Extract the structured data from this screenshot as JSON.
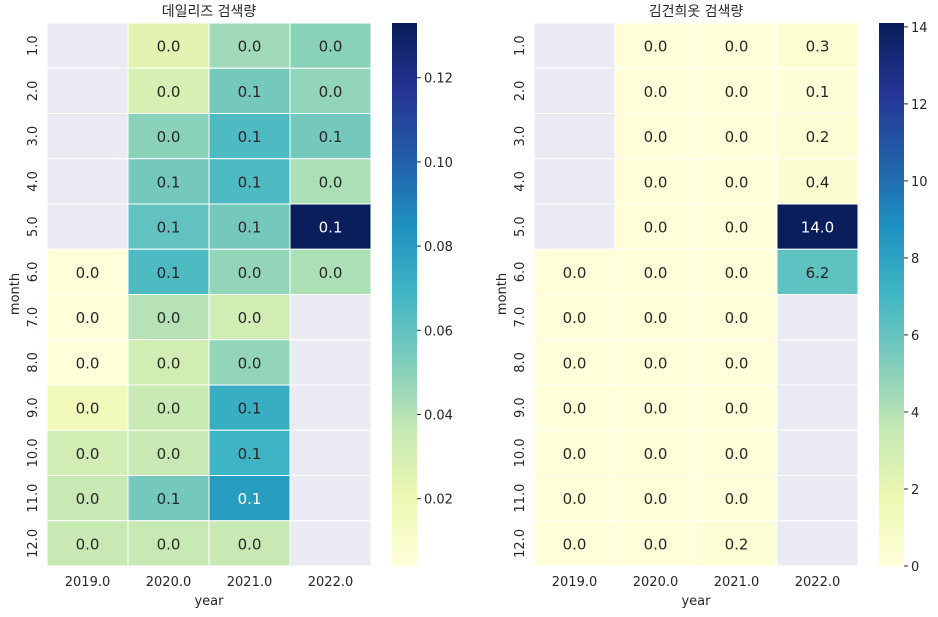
{
  "colorscale": {
    "name": "YlGnBu",
    "stops": [
      "#ffffd9",
      "#edf8b1",
      "#c7e9b4",
      "#7fcdbb",
      "#41b6c4",
      "#1d91c0",
      "#225ea8",
      "#253494",
      "#081d58"
    ],
    "missing_color": "#eaeaf2",
    "cell_border": "#ffffff"
  },
  "chart_data": [
    {
      "type": "heatmap",
      "title": "데일리즈 검색량",
      "xlabel": "year",
      "ylabel": "month",
      "x_categories": [
        "2019.0",
        "2020.0",
        "2021.0",
        "2022.0"
      ],
      "y_categories": [
        "1.0",
        "2.0",
        "3.0",
        "4.0",
        "5.0",
        "6.0",
        "7.0",
        "8.0",
        "9.0",
        "10.0",
        "11.0",
        "12.0"
      ],
      "values": [
        [
          null,
          0.025,
          0.045,
          0.05
        ],
        [
          null,
          0.03,
          0.055,
          0.048
        ],
        [
          null,
          0.05,
          0.065,
          0.055
        ],
        [
          null,
          0.055,
          0.065,
          0.042
        ],
        [
          null,
          0.06,
          0.055,
          0.132
        ],
        [
          0.004,
          0.065,
          0.048,
          0.042
        ],
        [
          0.004,
          0.04,
          0.032,
          null
        ],
        [
          0.004,
          0.032,
          0.048,
          null
        ],
        [
          0.016,
          0.035,
          0.072,
          null
        ],
        [
          0.032,
          0.036,
          0.07,
          null
        ],
        [
          0.036,
          0.055,
          0.08,
          null
        ],
        [
          0.036,
          0.036,
          0.036,
          null
        ]
      ],
      "cell_labels": [
        [
          "",
          "0.0",
          "0.0",
          "0.0"
        ],
        [
          "",
          "0.0",
          "0.1",
          "0.0"
        ],
        [
          "",
          "0.0",
          "0.1",
          "0.1"
        ],
        [
          "",
          "0.1",
          "0.1",
          "0.0"
        ],
        [
          "",
          "0.1",
          "0.1",
          "0.1"
        ],
        [
          "0.0",
          "0.1",
          "0.0",
          "0.0"
        ],
        [
          "0.0",
          "0.0",
          "0.0",
          ""
        ],
        [
          "0.0",
          "0.0",
          "0.0",
          ""
        ],
        [
          "0.0",
          "0.0",
          "0.1",
          ""
        ],
        [
          "0.0",
          "0.0",
          "0.1",
          ""
        ],
        [
          "0.0",
          "0.1",
          "0.1",
          ""
        ],
        [
          "0.0",
          "0.0",
          "0.0",
          ""
        ]
      ],
      "color_range": [
        0.004,
        0.133
      ],
      "colorbar_ticks": [
        0.02,
        0.04,
        0.06,
        0.08,
        0.1,
        0.12
      ],
      "colorbar_tick_labels": [
        "0.02",
        "0.04",
        "0.06",
        "0.08",
        "0.10",
        "0.12"
      ]
    },
    {
      "type": "heatmap",
      "title": "김건희옷 검색량",
      "xlabel": "year",
      "ylabel": "month",
      "x_categories": [
        "2019.0",
        "2020.0",
        "2021.0",
        "2022.0"
      ],
      "y_categories": [
        "1.0",
        "2.0",
        "3.0",
        "4.0",
        "5.0",
        "6.0",
        "7.0",
        "8.0",
        "9.0",
        "10.0",
        "11.0",
        "12.0"
      ],
      "values": [
        [
          null,
          0.0,
          0.0,
          0.3
        ],
        [
          null,
          0.0,
          0.0,
          0.1
        ],
        [
          null,
          0.0,
          0.0,
          0.2
        ],
        [
          null,
          0.0,
          0.0,
          0.4
        ],
        [
          null,
          0.0,
          0.0,
          14.0
        ],
        [
          0.0,
          0.0,
          0.0,
          6.2
        ],
        [
          0.0,
          0.0,
          0.0,
          null
        ],
        [
          0.0,
          0.0,
          0.0,
          null
        ],
        [
          0.0,
          0.0,
          0.0,
          null
        ],
        [
          0.0,
          0.0,
          0.0,
          null
        ],
        [
          0.0,
          0.0,
          0.0,
          null
        ],
        [
          0.0,
          0.0,
          0.2,
          null
        ]
      ],
      "cell_labels": [
        [
          "",
          "0.0",
          "0.0",
          "0.3"
        ],
        [
          "",
          "0.0",
          "0.0",
          "0.1"
        ],
        [
          "",
          "0.0",
          "0.0",
          "0.2"
        ],
        [
          "",
          "0.0",
          "0.0",
          "0.4"
        ],
        [
          "",
          "0.0",
          "0.0",
          "14.0"
        ],
        [
          "0.0",
          "0.0",
          "0.0",
          "6.2"
        ],
        [
          "0.0",
          "0.0",
          "0.0",
          ""
        ],
        [
          "0.0",
          "0.0",
          "0.0",
          ""
        ],
        [
          "0.0",
          "0.0",
          "0.0",
          ""
        ],
        [
          "0.0",
          "0.0",
          "0.0",
          ""
        ],
        [
          "0.0",
          "0.0",
          "0.0",
          ""
        ],
        [
          "0.0",
          "0.0",
          "0.2",
          ""
        ]
      ],
      "color_range": [
        0.0,
        14.1
      ],
      "colorbar_ticks": [
        0,
        2,
        4,
        6,
        8,
        10,
        12,
        14
      ],
      "colorbar_tick_labels": [
        "0",
        "2",
        "4",
        "6",
        "8",
        "10",
        "12",
        "14"
      ]
    }
  ]
}
